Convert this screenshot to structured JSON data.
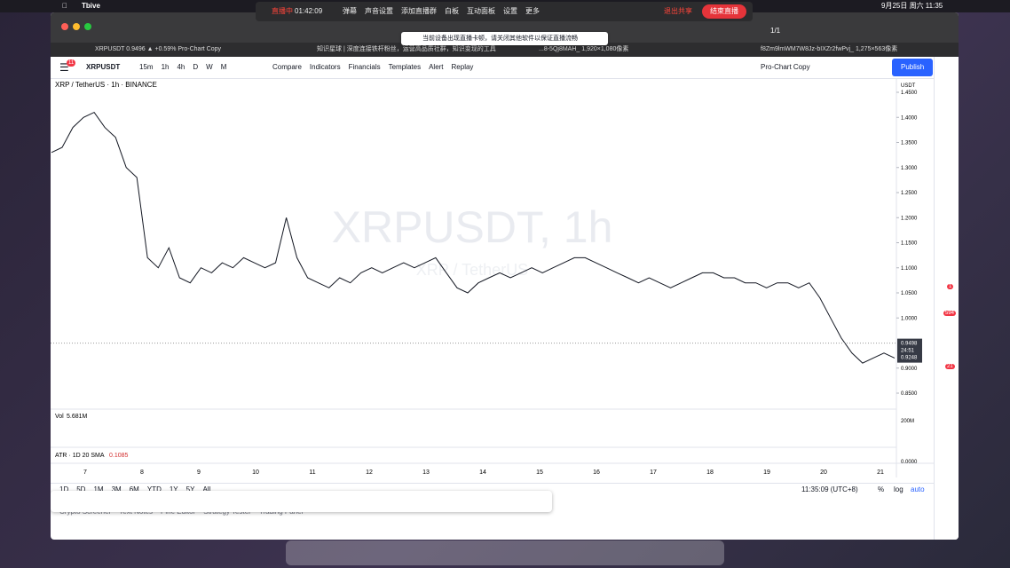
{
  "menubar": {
    "app": "Tbive",
    "recording": "直播中",
    "timer": "01:42:09",
    "items": [
      "弹幕",
      "声音设置",
      "添加直播群",
      "白板",
      "互动面板",
      "设置",
      "更多"
    ],
    "share": "退出共享",
    "end": "结束直播",
    "clock": "9月25日 周六 11:35"
  },
  "banner": {
    "text": "当前设备出现直播卡顿，请关闭其他软件以保证直播流畅",
    "pager": "1/1"
  },
  "tabs": [
    "XRPUSDT 0.9496 ▲ +0.59% Pro-Chart Copy",
    "知识星球 | 深度连接铁杆粉丝，运营高品质社群，知识变现的工具",
    "...8-5Qj8MAH_ 1,920×1,080像素",
    "f8Zm9lmWM7W8Jz-bIXZr2fwPvj_ 1,275×563像素"
  ],
  "toolbar": {
    "badge": "11",
    "symbol": "XRPUSDT",
    "intervals": [
      "15m",
      "1h",
      "4h",
      "D",
      "W",
      "M"
    ],
    "buttons": [
      "Compare",
      "Indicators",
      "Financials",
      "Templates",
      "Alert",
      "Replay"
    ],
    "layout": "Pro-Chart Copy",
    "publish": "Publish"
  },
  "legend": "XRP / TetherUS · 1h · BINANCE",
  "watermark": {
    "title": "XRPUSDT, 1h",
    "subtitle": "XRP / TetherUS"
  },
  "chart": {
    "type": "line",
    "color": "#131722",
    "values": [
      1.33,
      1.34,
      1.38,
      1.4,
      1.41,
      1.38,
      1.36,
      1.3,
      1.28,
      1.12,
      1.1,
      1.14,
      1.08,
      1.07,
      1.1,
      1.09,
      1.11,
      1.1,
      1.12,
      1.11,
      1.1,
      1.11,
      1.2,
      1.12,
      1.08,
      1.07,
      1.06,
      1.08,
      1.07,
      1.09,
      1.1,
      1.09,
      1.1,
      1.11,
      1.1,
      1.11,
      1.12,
      1.09,
      1.06,
      1.05,
      1.07,
      1.08,
      1.09,
      1.08,
      1.09,
      1.1,
      1.09,
      1.1,
      1.11,
      1.12,
      1.12,
      1.11,
      1.1,
      1.09,
      1.08,
      1.07,
      1.08,
      1.07,
      1.06,
      1.07,
      1.08,
      1.09,
      1.09,
      1.08,
      1.08,
      1.07,
      1.07,
      1.06,
      1.07,
      1.07,
      1.06,
      1.07,
      1.04,
      1.0,
      0.96,
      0.93,
      0.91,
      0.92,
      0.93,
      0.92
    ],
    "ylim": [
      0.85,
      1.45
    ],
    "yticks": [
      {
        "value": 1.45,
        "label": "1.4500"
      },
      {
        "value": 1.4,
        "label": "1.4000"
      },
      {
        "value": 1.35,
        "label": "1.3500"
      },
      {
        "value": 1.3,
        "label": "1.3000"
      },
      {
        "value": 1.25,
        "label": "1.2500"
      },
      {
        "value": 1.2,
        "label": "1.2000"
      },
      {
        "value": 1.15,
        "label": "1.1500"
      },
      {
        "value": 1.1,
        "label": "1.1000"
      },
      {
        "value": 1.05,
        "label": "1.0500"
      },
      {
        "value": 1,
        "label": "1.0000"
      },
      {
        "value": 0.9,
        "label": "0.9000"
      },
      {
        "value": 0.85,
        "label": "0.8500"
      }
    ],
    "currency": "USDT",
    "last": {
      "value": 0.9498,
      "label": "0.9498",
      "countdown": "24:51",
      "low": "0.9248"
    },
    "x_labels": [
      "7",
      "8",
      "9",
      "10",
      "11",
      "12",
      "13",
      "14",
      "15",
      "16",
      "17",
      "18",
      "19",
      "20",
      "21"
    ]
  },
  "volume": {
    "label": "Vol",
    "value": "5.681M",
    "axis": "200M"
  },
  "atr": {
    "label": "ATR · 1D 20 SMA",
    "value": "0.1085",
    "axis": "0.0000"
  },
  "bottom": {
    "ranges": [
      "1D",
      "5D",
      "1M",
      "3M",
      "6M",
      "YTD",
      "1Y",
      "5Y",
      "All"
    ],
    "time": "11:35:09 (UTC+8)",
    "percent": "%",
    "log": "log",
    "auto": "auto",
    "tabs": [
      "Crypto Screener",
      "Text Notes",
      "Pine Editor",
      "Strategy Tester",
      "Trading Panel"
    ]
  },
  "sidebar_badges": [
    "1",
    "594",
    "21"
  ]
}
